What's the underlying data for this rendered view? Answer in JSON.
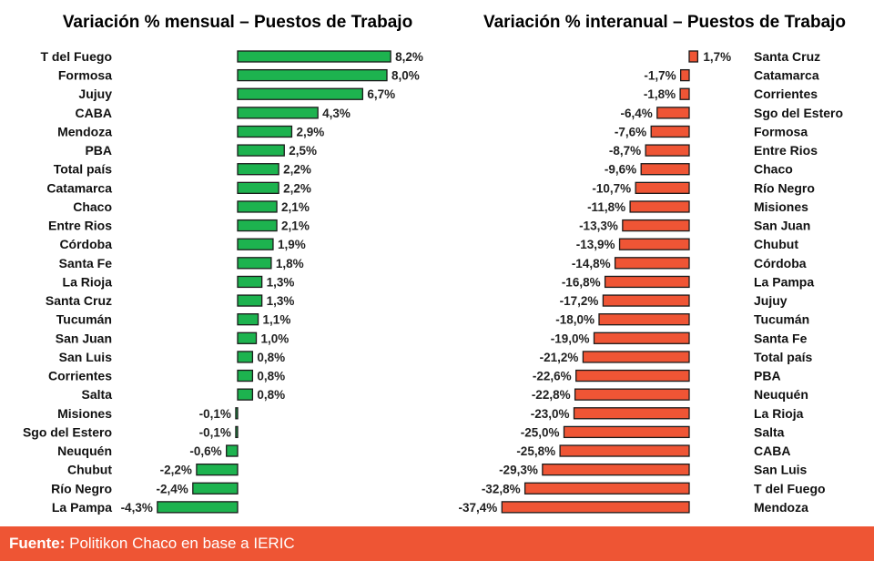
{
  "chart_data": [
    {
      "type": "bar",
      "orientation": "horizontal",
      "title": "Variación % mensual – Puestos de Trabajo",
      "color": "#1db34f",
      "negative_color": "#1db34f",
      "unit": "%",
      "categories": [
        "T del Fuego",
        "Formosa",
        "Jujuy",
        "CABA",
        "Mendoza",
        "PBA",
        "Total país",
        "Catamarca",
        "Chaco",
        "Entre Rios",
        "Córdoba",
        "Santa Fe",
        "La Rioja",
        "Santa Cruz",
        "Tucumán",
        "San Juan",
        "San Luis",
        "Corrientes",
        "Salta",
        "Misiones",
        "Sgo del Estero",
        "Neuquén",
        "Chubut",
        "Río Negro",
        "La Pampa"
      ],
      "values": [
        8.2,
        8.0,
        6.7,
        4.3,
        2.9,
        2.5,
        2.2,
        2.2,
        2.1,
        2.1,
        1.9,
        1.8,
        1.3,
        1.3,
        1.1,
        1.0,
        0.8,
        0.8,
        0.8,
        -0.1,
        -0.1,
        -0.6,
        -2.2,
        -2.4,
        -4.3
      ],
      "labels": [
        "8,2%",
        "8,0%",
        "6,7%",
        "4,3%",
        "2,9%",
        "2,5%",
        "2,2%",
        "2,2%",
        "2,1%",
        "2,1%",
        "1,9%",
        "1,8%",
        "1,3%",
        "1,3%",
        "1,1%",
        "1,0%",
        "0,8%",
        "0,8%",
        "0,8%",
        "-0,1%",
        "-0,1%",
        "-0,6%",
        "-2,2%",
        "-2,4%",
        "-4,3%"
      ],
      "xlim": [
        -4.5,
        8.2
      ]
    },
    {
      "type": "bar",
      "orientation": "horizontal",
      "title": "Variación % interanual – Puestos de Trabajo",
      "color": "#ef5535",
      "unit": "%",
      "categories": [
        "Santa Cruz",
        "Catamarca",
        "Corrientes",
        "Sgo del Estero",
        "Formosa",
        "Entre Rios",
        "Chaco",
        "Río Negro",
        "Misiones",
        "San Juan",
        "Chubut",
        "Córdoba",
        "La Pampa",
        "Jujuy",
        "Tucumán",
        "Santa Fe",
        "Total país",
        "PBA",
        "Neuquén",
        "La Rioja",
        "Salta",
        "CABA",
        "San Luis",
        "T del Fuego",
        "Mendoza"
      ],
      "values": [
        1.7,
        -1.7,
        -1.8,
        -6.4,
        -7.6,
        -8.7,
        -9.6,
        -10.7,
        -11.8,
        -13.3,
        -13.9,
        -14.8,
        -16.8,
        -17.2,
        -18.0,
        -19.0,
        -21.2,
        -22.6,
        -22.8,
        -23.0,
        -25.0,
        -25.8,
        -29.3,
        -32.8,
        -37.4
      ],
      "labels": [
        "1,7%",
        "-1,7%",
        "-1,8%",
        "-6,4%",
        "-7,6%",
        "-8,7%",
        "-9,6%",
        "-10,7%",
        "-11,8%",
        "-13,3%",
        "-13,9%",
        "-14,8%",
        "-16,8%",
        "-17,2%",
        "-18,0%",
        "-19,0%",
        "-21,2%",
        "-22,6%",
        "-22,8%",
        "-23,0%",
        "-25,0%",
        "-25,8%",
        "-29,3%",
        "-32,8%",
        "-37,4%"
      ],
      "xlim": [
        -37.4,
        1.7
      ]
    }
  ],
  "footer": {
    "label": "Fuente:",
    "text": " Politikon Chaco en base a IERIC"
  }
}
